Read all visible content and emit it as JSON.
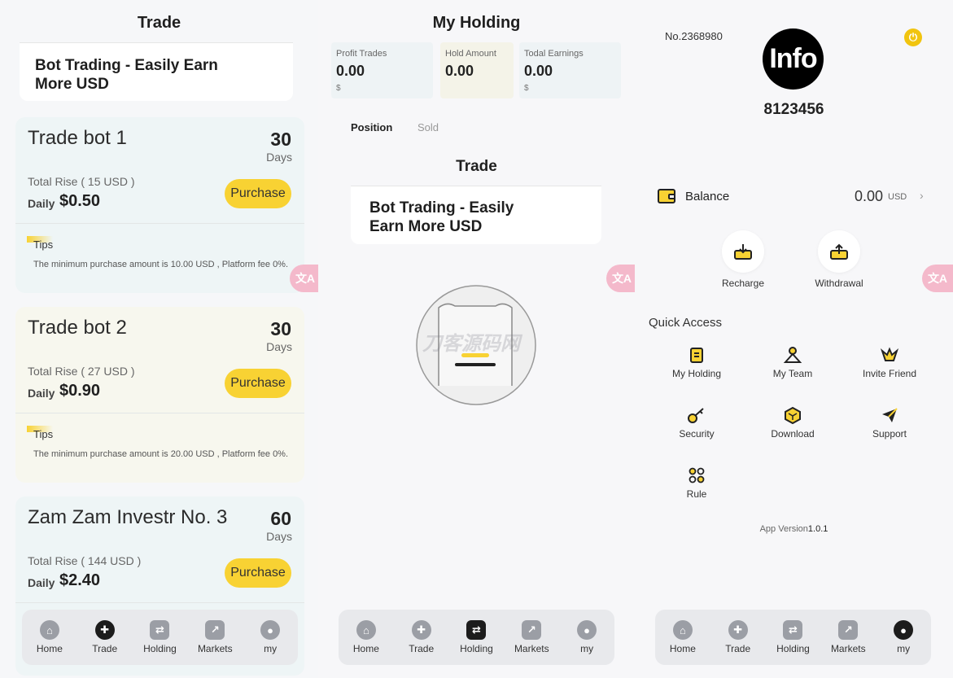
{
  "screen1": {
    "title": "Trade",
    "intro": "Bot Trading - Easily Earn More USD",
    "bots": [
      {
        "name": "Trade bot 1",
        "days": "30",
        "days_label": "Days",
        "total_rise": "Total Rise ( 15 USD )",
        "daily_label": "Daily",
        "daily_value": "$0.50",
        "purchase": "Purchase",
        "tips": "Tips",
        "tips_text": "The minimum purchase amount is 10.00 USD , Platform fee 0%."
      },
      {
        "name": "Trade bot 2",
        "days": "30",
        "days_label": "Days",
        "total_rise": "Total Rise ( 27 USD )",
        "daily_label": "Daily",
        "daily_value": "$0.90",
        "purchase": "Purchase",
        "tips": "Tips",
        "tips_text": "The minimum purchase amount is 20.00 USD , Platform fee 0%."
      },
      {
        "name": "Zam Zam Investr No. 3",
        "days": "60",
        "days_label": "Days",
        "total_rise": "Total Rise ( 144 USD )",
        "daily_label": "Daily",
        "daily_value": "$2.40",
        "purchase": "Purchase"
      }
    ],
    "translate_label": "文A"
  },
  "screen2": {
    "title": "My Holding",
    "stats": [
      {
        "label": "Profit Trades",
        "value": "0.00",
        "unit": "$"
      },
      {
        "label": "Hold Amount",
        "value": "0.00",
        "unit": ""
      },
      {
        "label": "Todal Earnings",
        "value": "0.00",
        "unit": "$"
      }
    ],
    "tabs": {
      "position": "Position",
      "sold": "Sold"
    },
    "section_title": "Trade",
    "intro": "Bot Trading - Easily Earn More USD",
    "watermark": "刀客源码网"
  },
  "screen3": {
    "user_no": "No.2368980",
    "avatar_text": "Info",
    "username": "8123456",
    "balance_label": "Balance",
    "balance_value": "0.00",
    "balance_unit": "USD",
    "recharge": "Recharge",
    "withdrawal": "Withdrawal",
    "quick_access": "Quick Access",
    "items": [
      "My Holding",
      "My Team",
      "Invite Friend",
      "Security",
      "Download",
      "Support",
      "Rule"
    ],
    "app_version_label": "App Version",
    "app_version": "1.0.1"
  },
  "tabbar": [
    "Home",
    "Trade",
    "Holding",
    "Markets",
    "my"
  ],
  "colors": {
    "accent": "#f8d233",
    "card_blue": "#eef5f6",
    "card_cream": "#f7f7ee",
    "tab_active": "#1c1c1c"
  }
}
